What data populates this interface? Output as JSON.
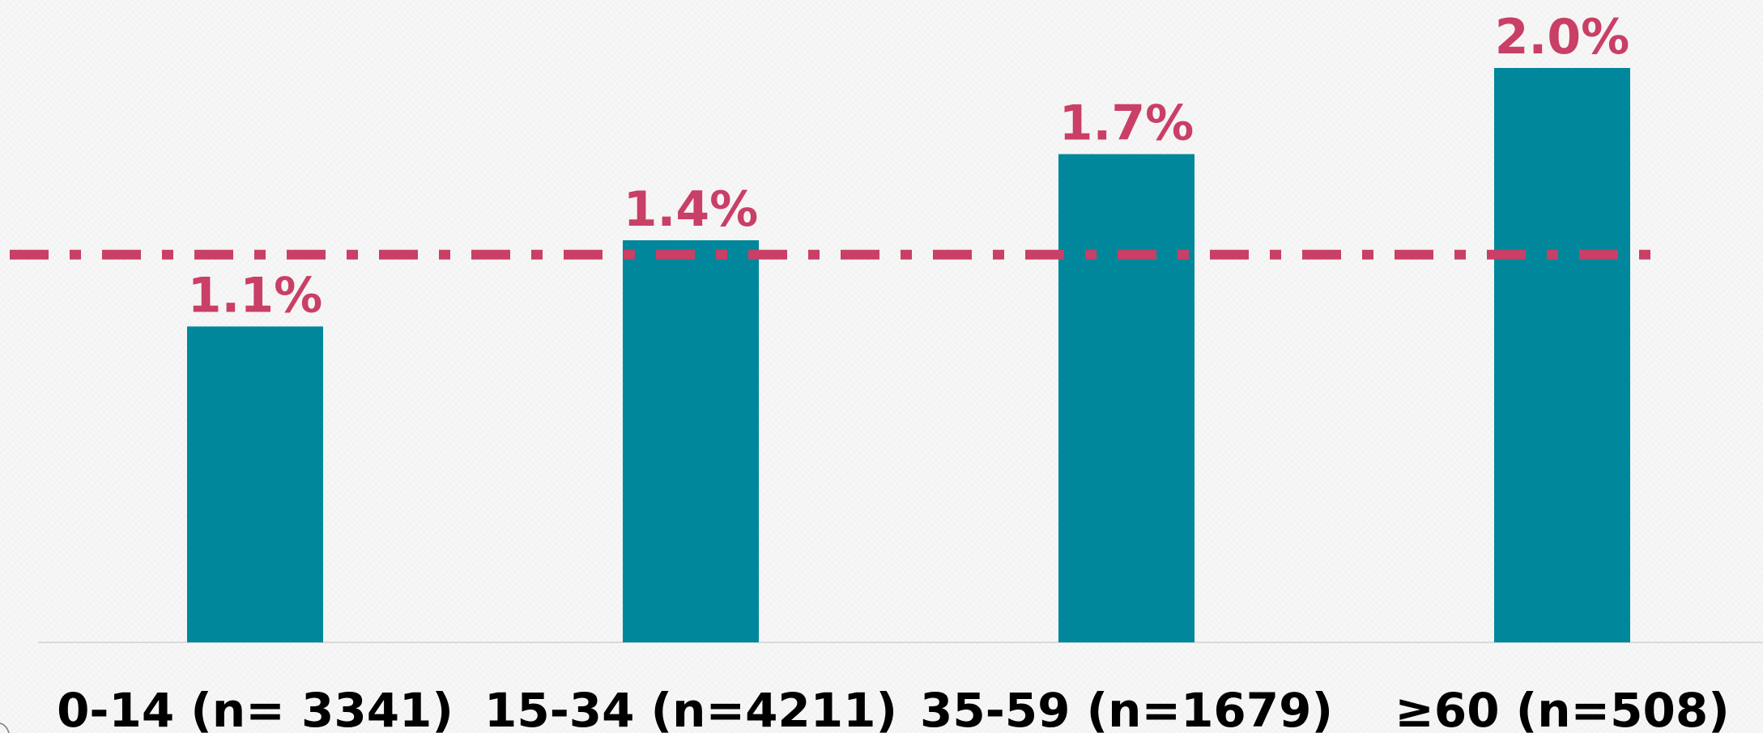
{
  "chart_data": {
    "type": "bar",
    "categories": [
      "0-14 (n= 3341)",
      "15-34 (n=4211)",
      "35-59 (n=1679)",
      "≥60 (n=508)"
    ],
    "values": [
      1.1,
      1.4,
      1.7,
      2.0
    ],
    "value_labels": [
      "1.1%",
      "1.4%",
      "1.7%",
      "2.0%"
    ],
    "reference_line": {
      "value": 1.35,
      "style": "dash-dot"
    },
    "title": "",
    "xlabel": "",
    "ylabel": "",
    "ylim": [
      0,
      2.2
    ],
    "grid": false,
    "legend": "none"
  },
  "colors": {
    "bar": "#00879b",
    "label": "#c93f66",
    "reference_line": "#c93f66",
    "category_text": "#000000",
    "axis": "#d9d9d9"
  }
}
